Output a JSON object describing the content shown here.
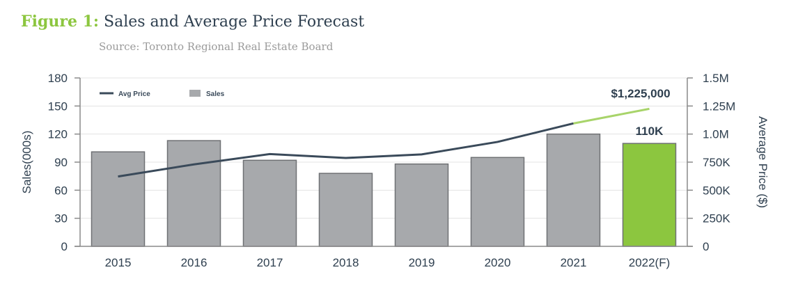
{
  "header": {
    "figure_label": "Figure 1:",
    "title": "Sales and Average Price Forecast",
    "source": "Source: Toronto Regional Real Estate Board"
  },
  "colors": {
    "bar": "#a7a9ac",
    "bar_highlight": "#8cc63f",
    "line": "#3a4a5a",
    "line_forecast": "#a8d46a",
    "text": "#2e3f4f"
  },
  "chart_data": {
    "type": "bar",
    "categories": [
      "2015",
      "2016",
      "2017",
      "2018",
      "2019",
      "2020",
      "2021",
      "2022(F)"
    ],
    "series": [
      {
        "name": "Sales",
        "axis": "left",
        "values": [
          101,
          113,
          92,
          78,
          88,
          95,
          120,
          110
        ]
      },
      {
        "name": "Avg Price",
        "axis": "right",
        "type": "line",
        "values": [
          622000,
          730000,
          822000,
          787000,
          819000,
          930000,
          1095000,
          1225000
        ]
      }
    ],
    "ylabel": "Sales(000s)",
    "ylim": [
      0,
      180
    ],
    "yticks": [
      0,
      30,
      60,
      90,
      120,
      150,
      180
    ],
    "y2label": "Average Price ($)",
    "y2lim": [
      0,
      1500000
    ],
    "y2ticks": [
      "0",
      "250K",
      "500K",
      "750K",
      "1.0M",
      "1.25M",
      "1.5M"
    ],
    "annotations": {
      "price_label": "$1,225,000",
      "sales_label": "110K"
    },
    "legend": [
      {
        "label": "Avg Price",
        "kind": "line"
      },
      {
        "label": "Sales",
        "kind": "bar"
      }
    ],
    "legend_position": "top-left",
    "highlight_index": 7,
    "forecast_segment_from": 6,
    "grid": true
  }
}
